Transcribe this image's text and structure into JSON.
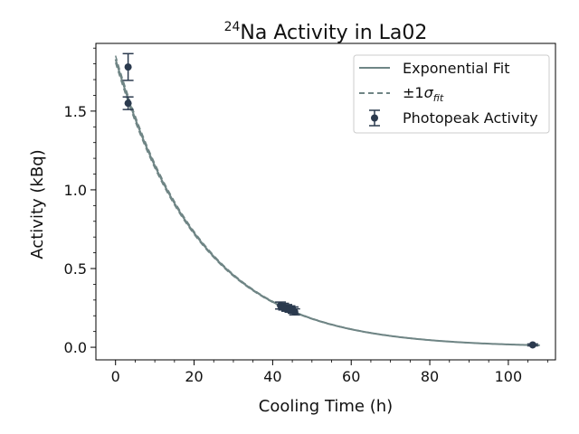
{
  "chart_data": {
    "type": "scatter",
    "title_sup": "24",
    "title_main": "Na Activity in La02",
    "xlabel": "Cooling Time (h)",
    "ylabel": "Activity (kBq)",
    "xlim": [
      -5,
      112
    ],
    "ylim": [
      -0.08,
      1.93
    ],
    "xticks": [
      "0",
      "20",
      "40",
      "60",
      "80",
      "100"
    ],
    "xtick_values": [
      0,
      20,
      40,
      60,
      80,
      100
    ],
    "yticks": [
      "0.0",
      "0.5",
      "1.0",
      "1.5"
    ],
    "ytick_values": [
      0.0,
      0.5,
      1.0,
      1.5
    ],
    "grid": false,
    "legend_position": "top-right",
    "legend": {
      "fit_label": "Exponential Fit",
      "sigma_prefix": "±1",
      "sigma_symbol": "σ",
      "sigma_sub": "fit",
      "points_label": "Photopeak Activity"
    },
    "fit": {
      "A0": 1.83,
      "half_life_h": 15.0,
      "x_range": [
        0,
        108
      ],
      "color": "#6f8585"
    },
    "points": {
      "color": "#2b3a4e",
      "x": [
        3.2,
        3.2,
        42.0,
        42.8,
        43.6,
        44.4,
        45.2,
        45.6,
        106.2
      ],
      "y": [
        1.78,
        1.55,
        0.265,
        0.258,
        0.25,
        0.243,
        0.236,
        0.225,
        0.015
      ],
      "yerr": [
        0.085,
        0.04,
        0.022,
        0.021,
        0.021,
        0.02,
        0.02,
        0.019,
        0.006
      ]
    }
  }
}
